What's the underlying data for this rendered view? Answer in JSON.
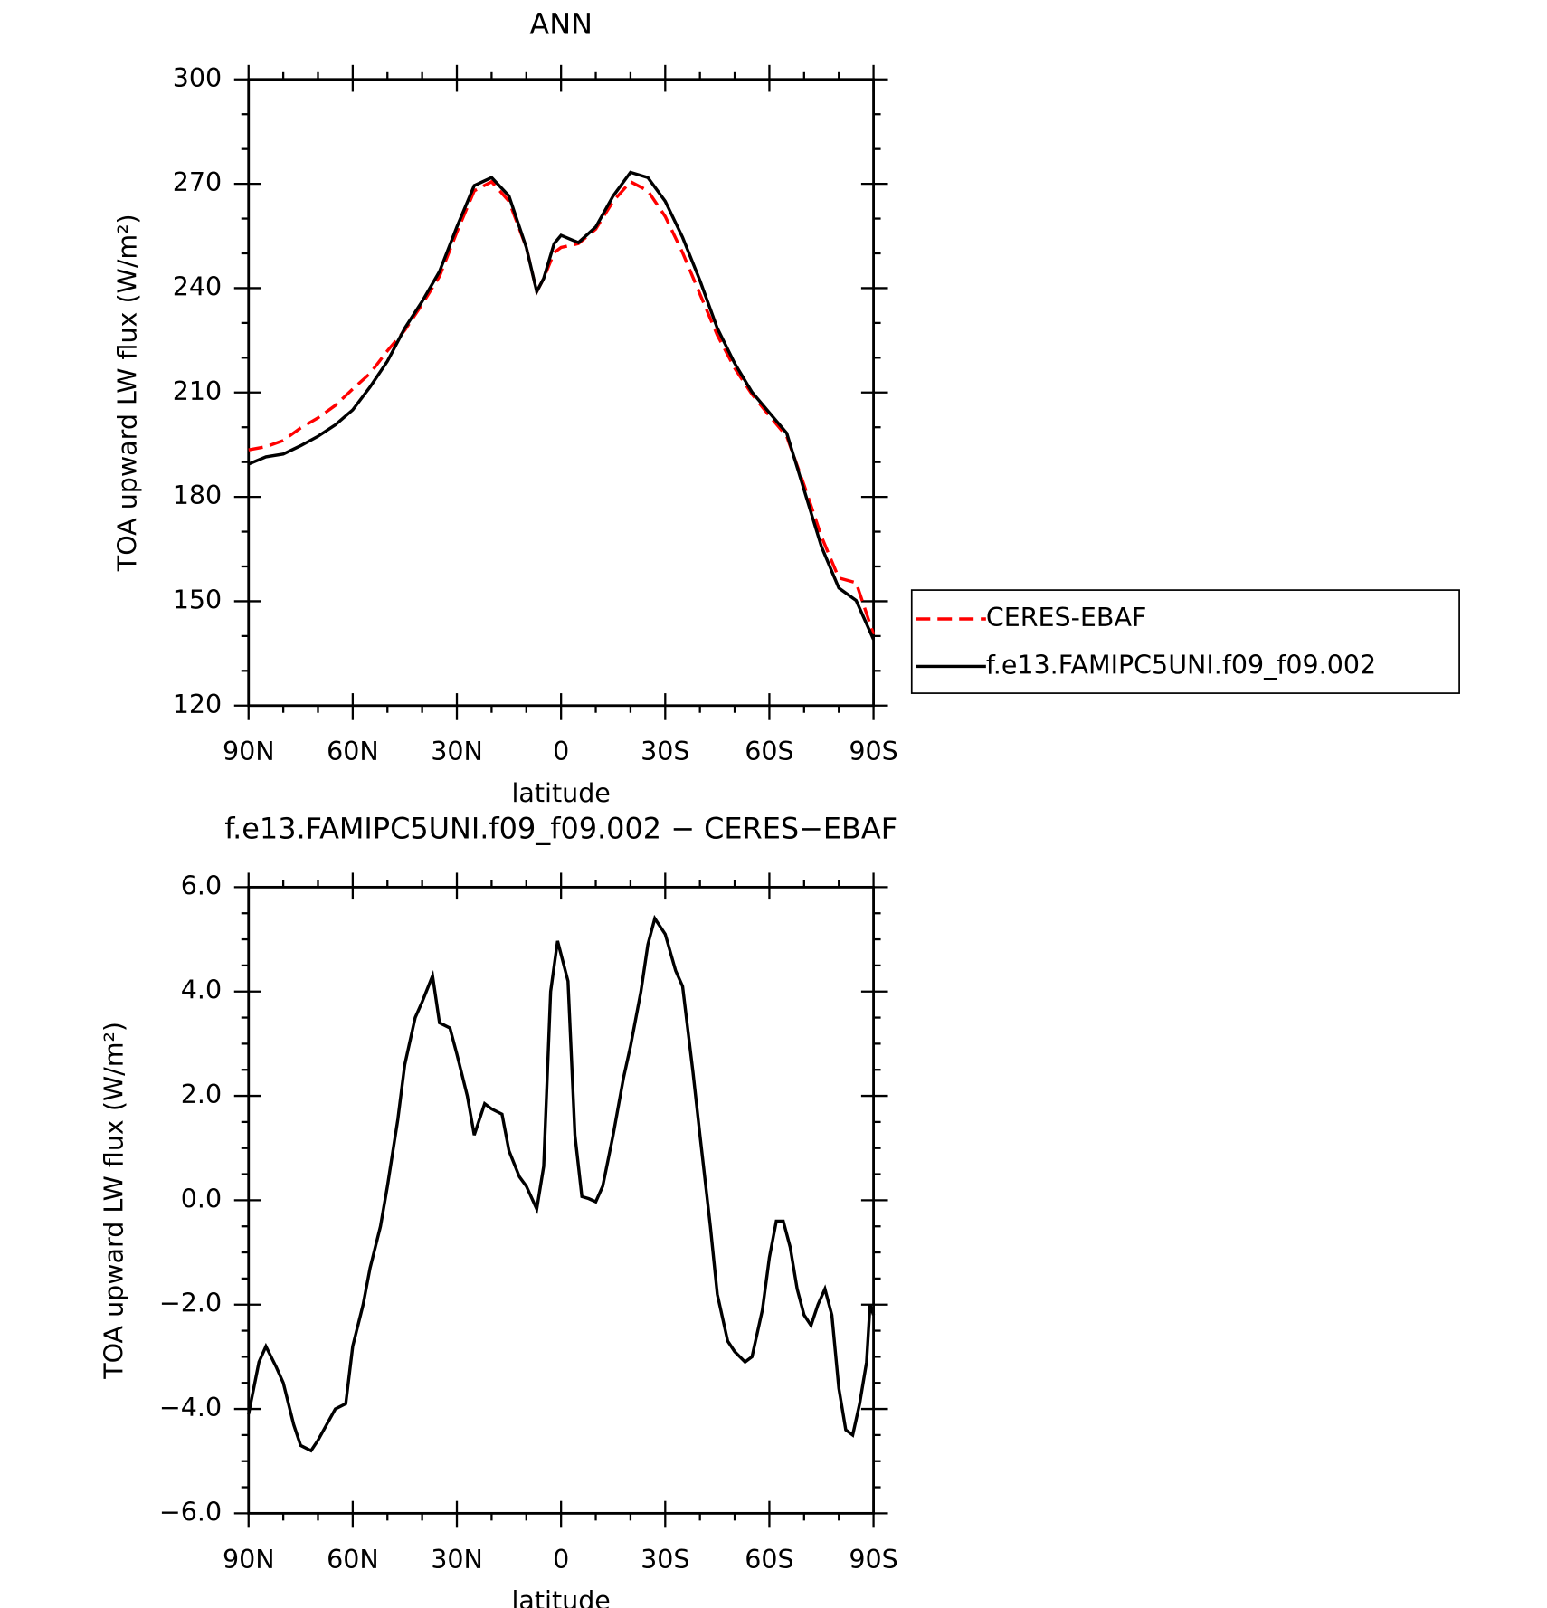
{
  "chart_data": [
    {
      "type": "line",
      "title": "ANN",
      "xlabel": "latitude",
      "ylabel": "TOA upward LW flux (W/m²)",
      "x": [
        90,
        85,
        80,
        75,
        70,
        65,
        60,
        55,
        50,
        45,
        40,
        35,
        30,
        25,
        20,
        15,
        10,
        7,
        5,
        2,
        0,
        -5,
        -10,
        -15,
        -20,
        -25,
        -30,
        -35,
        -40,
        -45,
        -50,
        -55,
        -60,
        -65,
        -70,
        -75,
        -80,
        -85,
        -90
      ],
      "series": [
        {
          "name": "CERES-EBAF",
          "color": "#ff0000",
          "line_style": "dashed",
          "values": [
            193.5,
            194.4,
            196.2,
            199.8,
            202.7,
            206.3,
            211,
            215.5,
            222,
            227.9,
            235.4,
            243.4,
            256.1,
            268,
            270.6,
            265,
            251.7,
            239,
            242.8,
            250.2,
            251.7,
            252.8,
            257,
            265,
            270.6,
            268,
            260.6,
            250.2,
            238.3,
            226.5,
            217,
            209.5,
            203.3,
            197.4,
            183.4,
            168.6,
            156.7,
            155.3,
            140.5
          ]
        },
        {
          "name": "f.e13.FAMIPC5UNI.f09_f09.002",
          "color": "#000000",
          "line_style": "solid",
          "values": [
            189.4,
            191.5,
            192.3,
            194.7,
            197.4,
            200.7,
            205,
            211.6,
            219,
            228.5,
            236.2,
            244.8,
            257.6,
            269.5,
            271.8,
            266.5,
            251.7,
            239,
            242.8,
            252.8,
            255.2,
            253.1,
            257.6,
            266.5,
            273.3,
            271.8,
            265,
            254.6,
            242.2,
            228.5,
            218.4,
            210.1,
            204.2,
            198.3,
            182,
            165.7,
            153.8,
            150.2,
            139
          ]
        }
      ],
      "xlim": [
        90,
        -90
      ],
      "xticks": [
        {
          "value": 90,
          "label": "90N"
        },
        {
          "value": 60,
          "label": "60N"
        },
        {
          "value": 30,
          "label": "30N"
        },
        0,
        {
          "value": -30,
          "label": "30S"
        },
        {
          "value": -60,
          "label": "60S"
        },
        {
          "value": -90,
          "label": "90S"
        }
      ],
      "ylim": [
        120,
        300
      ],
      "yticks": [
        120,
        150,
        180,
        210,
        240,
        270,
        300
      ],
      "legend": "right"
    },
    {
      "type": "line",
      "title": "f.e13.FAMIPC5UNI.f09_f09.002 − CERES−EBAF",
      "xlabel": "latitude",
      "ylabel": "TOA upward LW flux (W/m²)",
      "x": [
        90,
        87,
        85,
        82,
        80,
        77,
        75,
        72,
        70,
        65,
        62,
        60,
        57,
        55,
        52,
        50,
        47,
        45,
        42,
        40,
        37,
        35,
        32,
        30,
        27,
        25,
        22,
        20,
        17,
        15,
        12,
        10,
        7,
        5,
        3,
        1,
        -2,
        -4,
        -6,
        -8,
        -10,
        -12,
        -15,
        -18,
        -20,
        -23,
        -25,
        -27,
        -30,
        -33,
        -35,
        -38,
        -40,
        -43,
        -45,
        -48,
        -50,
        -53,
        -55,
        -58,
        -60,
        -62,
        -64,
        -66,
        -68,
        -70,
        -72,
        -74,
        -76,
        -78,
        -80,
        -82,
        -84,
        -86,
        -88,
        -89,
        -90
      ],
      "series": [
        {
          "color": "#000000",
          "line_style": "solid",
          "values": [
            -4.1,
            -3.1,
            -2.8,
            -3.2,
            -3.5,
            -4.3,
            -4.7,
            -4.8,
            -4.6,
            -4.0,
            -3.9,
            -2.8,
            -2.0,
            -1.3,
            -0.5,
            0.27,
            1.55,
            2.6,
            3.5,
            3.8,
            4.3,
            3.4,
            3.3,
            2.8,
            2.0,
            1.25,
            1.85,
            1.75,
            1.65,
            0.95,
            0.45,
            0.27,
            -0.17,
            0.65,
            4.0,
            4.97,
            4.2,
            1.25,
            0.07,
            0.03,
            -0.03,
            0.27,
            1.25,
            2.35,
            2.95,
            4.0,
            4.9,
            5.4,
            5.1,
            4.4,
            4.1,
            2.45,
            1.25,
            -0.5,
            -1.8,
            -2.7,
            -2.9,
            -3.1,
            -3.0,
            -2.1,
            -1.1,
            -0.4,
            -0.4,
            -0.9,
            -1.7,
            -2.2,
            -2.4,
            -2.0,
            -1.7,
            -2.2,
            -3.6,
            -4.4,
            -4.5,
            -3.9,
            -3.1,
            -2.0,
            -2.2
          ]
        }
      ],
      "xlim": [
        90,
        -90
      ],
      "xticks": [
        {
          "value": 90,
          "label": "90N"
        },
        {
          "value": 60,
          "label": "60N"
        },
        {
          "value": 30,
          "label": "30N"
        },
        0,
        {
          "value": -30,
          "label": "30S"
        },
        {
          "value": -60,
          "label": "60S"
        },
        {
          "value": -90,
          "label": "90S"
        }
      ],
      "ylim": [
        -6,
        6
      ],
      "yticks": [
        {
          "value": -6,
          "label": "−6.0"
        },
        {
          "value": -4,
          "label": "−4.0"
        },
        {
          "value": -2,
          "label": "−2.0"
        },
        {
          "value": 0,
          "label": "0.0"
        },
        {
          "value": 2,
          "label": "2.0"
        },
        {
          "value": 4,
          "label": "4.0"
        },
        {
          "value": 6,
          "label": "6.0"
        }
      ]
    }
  ]
}
